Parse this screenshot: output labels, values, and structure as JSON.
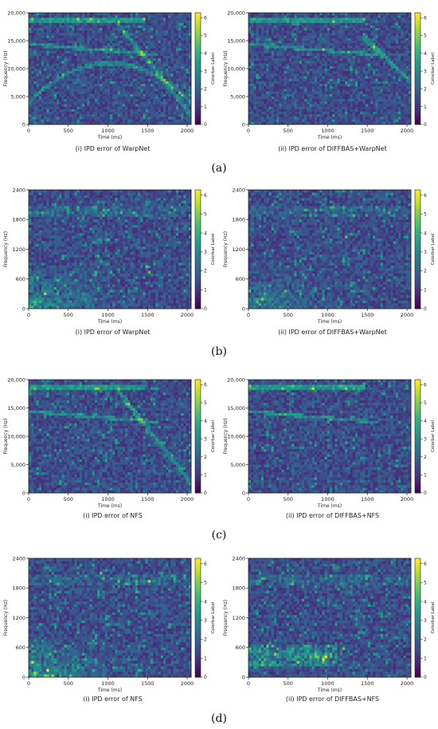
{
  "rows": [
    {
      "label": "(a)",
      "panels": [
        {
          "caption": "(i) IPD error of WarpNet"
        },
        {
          "caption": "(ii) IPD error of DIFFBAS+WarpNet"
        }
      ]
    },
    {
      "label": "(b)",
      "panels": [
        {
          "caption": "(i) IPD error of WarpNet"
        },
        {
          "caption": "(ii) IPD error of DIFFBAS+WarpNet"
        }
      ]
    },
    {
      "label": "(c)",
      "panels": [
        {
          "caption": "(i) IPD error of NFS"
        },
        {
          "caption": "(ii) IPD error of DIFFBAS+NFS"
        }
      ]
    },
    {
      "label": "(d)",
      "panels": [
        {
          "caption": "(i) IPD error of NFS"
        },
        {
          "caption": "(ii) IPD error of DIFFBAS+NFS"
        }
      ]
    }
  ],
  "chart_data": [
    {
      "type": "heatmap",
      "title": "",
      "xlabel": "Time (ms)",
      "ylabel": "Frequency (Hz)",
      "colorbar_label": "Colorbar Label",
      "xlim": [
        0,
        2050
      ],
      "ylim": [
        0,
        20000
      ],
      "xticks": [
        0,
        500,
        1000,
        1500,
        2000
      ],
      "xtick_labels": [
        "0",
        "500",
        "1000",
        "1500",
        "2000"
      ],
      "yticks": [
        0,
        5000,
        10000,
        15000,
        20000
      ],
      "ytick_labels": [
        "0",
        "5,000",
        "10,000",
        "15,000",
        "20,000"
      ],
      "colorbar_range": [
        0,
        6.28
      ],
      "colorbar_ticks": [
        0,
        1,
        2,
        3,
        4,
        5,
        6
      ],
      "colorbar_tick_labels": [
        "0",
        "1",
        "2",
        "3",
        "4",
        "5",
        "6"
      ],
      "colormap": "viridis"
    },
    {
      "type": "heatmap",
      "title": "",
      "xlabel": "Time (ms)",
      "ylabel": "Frequency (Hz)",
      "colorbar_label": "Colorbar Label",
      "xlim": [
        0,
        2050
      ],
      "ylim": [
        0,
        20000
      ],
      "xticks": [
        0,
        500,
        1000,
        1500,
        2000
      ],
      "xtick_labels": [
        "0",
        "500",
        "1000",
        "1500",
        "2000"
      ],
      "yticks": [
        0,
        5000,
        10000,
        15000,
        20000
      ],
      "ytick_labels": [
        "0",
        "5,000",
        "10,000",
        "15,000",
        "20,000"
      ],
      "colorbar_range": [
        0,
        6.28
      ],
      "colorbar_ticks": [
        0,
        1,
        2,
        3,
        4,
        5,
        6
      ],
      "colorbar_tick_labels": [
        "0",
        "1",
        "2",
        "3",
        "4",
        "5",
        "6"
      ],
      "colormap": "viridis"
    },
    {
      "type": "heatmap",
      "title": "",
      "xlabel": "Time (ms)",
      "ylabel": "Frequency (Hz)",
      "colorbar_label": "Colorbar Label",
      "xlim": [
        0,
        2050
      ],
      "ylim": [
        0,
        2400
      ],
      "xticks": [
        0,
        500,
        1000,
        1500,
        2000
      ],
      "xtick_labels": [
        "0",
        "500",
        "1000",
        "1500",
        "2000"
      ],
      "yticks": [
        0,
        600,
        1200,
        1800,
        2400
      ],
      "ytick_labels": [
        "0",
        "600",
        "1200",
        "1800",
        "2400"
      ],
      "colorbar_range": [
        0,
        6.28
      ],
      "colorbar_ticks": [
        0,
        1,
        2,
        3,
        4,
        5,
        6
      ],
      "colorbar_tick_labels": [
        "0",
        "1",
        "2",
        "3",
        "4",
        "5",
        "6"
      ],
      "colormap": "viridis"
    },
    {
      "type": "heatmap",
      "title": "",
      "xlabel": "Time (ms)",
      "ylabel": "Frequency (Hz)",
      "colorbar_label": "Colorbar Label",
      "xlim": [
        0,
        2050
      ],
      "ylim": [
        0,
        2400
      ],
      "xticks": [
        0,
        500,
        1000,
        1500,
        2000
      ],
      "xtick_labels": [
        "0",
        "500",
        "1000",
        "1500",
        "2000"
      ],
      "yticks": [
        0,
        600,
        1200,
        1800,
        2400
      ],
      "ytick_labels": [
        "0",
        "600",
        "1200",
        "1800",
        "2400"
      ],
      "colorbar_range": [
        0,
        6.28
      ],
      "colorbar_ticks": [
        0,
        1,
        2,
        3,
        4,
        5,
        6
      ],
      "colorbar_tick_labels": [
        "0",
        "1",
        "2",
        "3",
        "4",
        "5",
        "6"
      ],
      "colormap": "viridis"
    },
    {
      "type": "heatmap",
      "title": "",
      "xlabel": "Time (ms)",
      "ylabel": "Frequency (Hz)",
      "colorbar_label": "Colorbar Label",
      "xlim": [
        0,
        2050
      ],
      "ylim": [
        0,
        20000
      ],
      "xticks": [
        0,
        500,
        1000,
        1500,
        2000
      ],
      "xtick_labels": [
        "0",
        "500",
        "1000",
        "1500",
        "2000"
      ],
      "yticks": [
        0,
        5000,
        10000,
        15000,
        20000
      ],
      "ytick_labels": [
        "0",
        "5,000",
        "10,000",
        "15,000",
        "20,000"
      ],
      "colorbar_range": [
        0,
        6.28
      ],
      "colorbar_ticks": [
        0,
        1,
        2,
        3,
        4,
        5,
        6
      ],
      "colorbar_tick_labels": [
        "0",
        "1",
        "2",
        "3",
        "4",
        "5",
        "6"
      ],
      "colormap": "viridis"
    },
    {
      "type": "heatmap",
      "title": "",
      "xlabel": "Time (ms)",
      "ylabel": "Frequency (Hz)",
      "colorbar_label": "Colorbar Label",
      "xlim": [
        0,
        2050
      ],
      "ylim": [
        0,
        20000
      ],
      "xticks": [
        0,
        500,
        1000,
        1500,
        2000
      ],
      "xtick_labels": [
        "0",
        "500",
        "1000",
        "1500",
        "2000"
      ],
      "yticks": [
        0,
        5000,
        10000,
        15000,
        20000
      ],
      "ytick_labels": [
        "0",
        "5,000",
        "10,000",
        "15,000",
        "20,000"
      ],
      "colorbar_range": [
        0,
        6.28
      ],
      "colorbar_ticks": [
        0,
        1,
        2,
        3,
        4,
        5,
        6
      ],
      "colorbar_tick_labels": [
        "0",
        "1",
        "2",
        "3",
        "4",
        "5",
        "6"
      ],
      "colormap": "viridis"
    },
    {
      "type": "heatmap",
      "title": "",
      "xlabel": "Time (ms)",
      "ylabel": "Frequency (Hz)",
      "colorbar_label": "Colorbar Label",
      "xlim": [
        0,
        2050
      ],
      "ylim": [
        0,
        2400
      ],
      "xticks": [
        0,
        500,
        1000,
        1500,
        2000
      ],
      "xtick_labels": [
        "0",
        "500",
        "1000",
        "1500",
        "2000"
      ],
      "yticks": [
        0,
        600,
        1200,
        1800,
        2400
      ],
      "ytick_labels": [
        "0",
        "600",
        "1200",
        "1800",
        "2400"
      ],
      "colorbar_range": [
        0,
        6.28
      ],
      "colorbar_ticks": [
        0,
        1,
        2,
        3,
        4,
        5,
        6
      ],
      "colorbar_tick_labels": [
        "0",
        "1",
        "2",
        "3",
        "4",
        "5",
        "6"
      ],
      "colormap": "viridis"
    },
    {
      "type": "heatmap",
      "title": "",
      "xlabel": "Time (ms)",
      "ylabel": "Frequency (Hz)",
      "colorbar_label": "Colorbar Label",
      "xlim": [
        0,
        2050
      ],
      "ylim": [
        0,
        2400
      ],
      "xticks": [
        0,
        500,
        1000,
        1500,
        2000
      ],
      "xtick_labels": [
        "0",
        "500",
        "1000",
        "1500",
        "2000"
      ],
      "yticks": [
        0,
        600,
        1200,
        1800,
        2400
      ],
      "ytick_labels": [
        "0",
        "600",
        "1200",
        "1800",
        "2400"
      ],
      "colorbar_range": [
        0,
        6.28
      ],
      "colorbar_ticks": [
        0,
        1,
        2,
        3,
        4,
        5,
        6
      ],
      "colorbar_tick_labels": [
        "0",
        "1",
        "2",
        "3",
        "4",
        "5",
        "6"
      ],
      "colormap": "viridis"
    }
  ]
}
